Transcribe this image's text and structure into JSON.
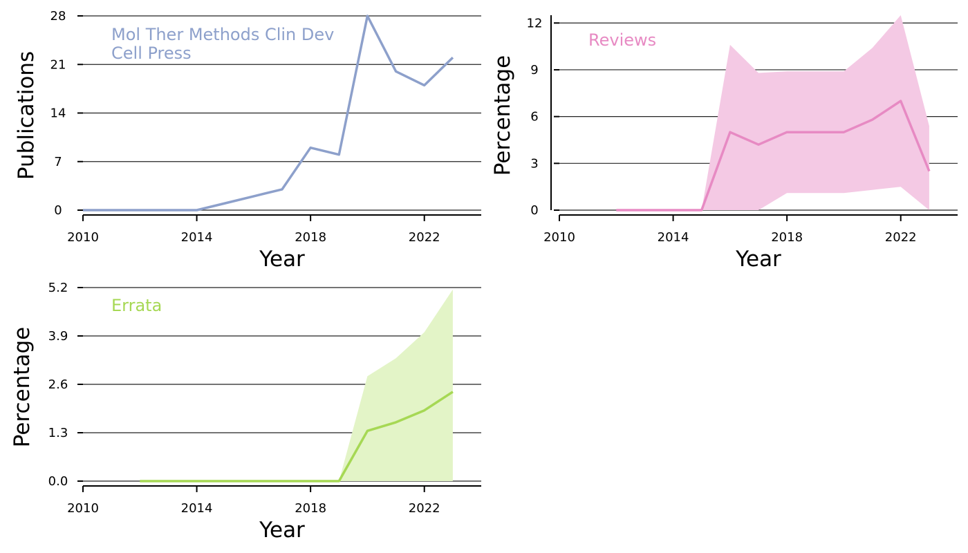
{
  "chart_data": [
    {
      "type": "line",
      "xlabel": "Year",
      "ylabel": "Publications",
      "xlim": [
        2010,
        2024
      ],
      "ylim": [
        0,
        28
      ],
      "xticks": [
        2010,
        2014,
        2018,
        2022
      ],
      "yticks": [
        "0",
        "7",
        "14",
        "21",
        "28"
      ],
      "grid": "horizontal",
      "color": "#8da0cb",
      "annotation": [
        "Mol Ther Methods Clin Dev",
        "Cell Press"
      ],
      "series": [
        {
          "x": [
            2010,
            2011,
            2012,
            2013,
            2014,
            2015,
            2016,
            2017,
            2018,
            2019,
            2020,
            2021,
            2022,
            2023
          ],
          "values": [
            0,
            0,
            0,
            0,
            0,
            1,
            2,
            3,
            9,
            8,
            28,
            20,
            18,
            22
          ]
        }
      ]
    },
    {
      "type": "area",
      "xlabel": "Year",
      "ylabel": "Percentage",
      "xlim": [
        2010,
        2024
      ],
      "ylim": [
        0,
        12.5
      ],
      "xticks": [
        2010,
        2014,
        2018,
        2022
      ],
      "yticks": [
        "0",
        "3",
        "6",
        "9",
        "12"
      ],
      "grid": "horizontal",
      "color": "#e78ac3",
      "band_color": "#f4c9e4",
      "annotation": [
        "Reviews"
      ],
      "series": [
        {
          "x": [
            2012,
            2013,
            2014,
            2015,
            2016,
            2017,
            2018,
            2019,
            2020,
            2021,
            2022,
            2023
          ],
          "values": [
            0,
            0,
            0,
            0,
            5.0,
            4.2,
            5.0,
            5.0,
            5.0,
            5.8,
            7.0,
            2.5
          ],
          "lower": [
            0,
            0,
            0,
            0,
            0,
            0,
            1.1,
            1.1,
            1.1,
            1.3,
            1.5,
            0
          ],
          "upper": [
            0,
            0,
            0,
            0,
            10.6,
            8.8,
            8.9,
            8.9,
            8.9,
            10.4,
            12.5,
            5.4
          ]
        }
      ]
    },
    {
      "type": "area",
      "xlabel": "Year",
      "ylabel": "Percentage",
      "xlim": [
        2010,
        2024
      ],
      "ylim": [
        0,
        5.2
      ],
      "xticks": [
        2010,
        2014,
        2018,
        2022
      ],
      "yticks": [
        "0.0",
        "1.3",
        "2.6",
        "3.9",
        "5.2"
      ],
      "grid": "horizontal",
      "color": "#a6d854",
      "band_color": "#e3f4c7",
      "annotation": [
        "Errata"
      ],
      "series": [
        {
          "x": [
            2012,
            2013,
            2014,
            2015,
            2016,
            2017,
            2018,
            2019,
            2020,
            2021,
            2022,
            2023
          ],
          "values": [
            0,
            0,
            0,
            0,
            0,
            0,
            0,
            0,
            1.35,
            1.58,
            1.9,
            2.4
          ],
          "lower": [
            0,
            0,
            0,
            0,
            0,
            0,
            0,
            0,
            0,
            0,
            0,
            0
          ],
          "upper": [
            0,
            0,
            0,
            0,
            0,
            0,
            0,
            0,
            2.82,
            3.3,
            4.0,
            5.15
          ]
        }
      ]
    }
  ]
}
